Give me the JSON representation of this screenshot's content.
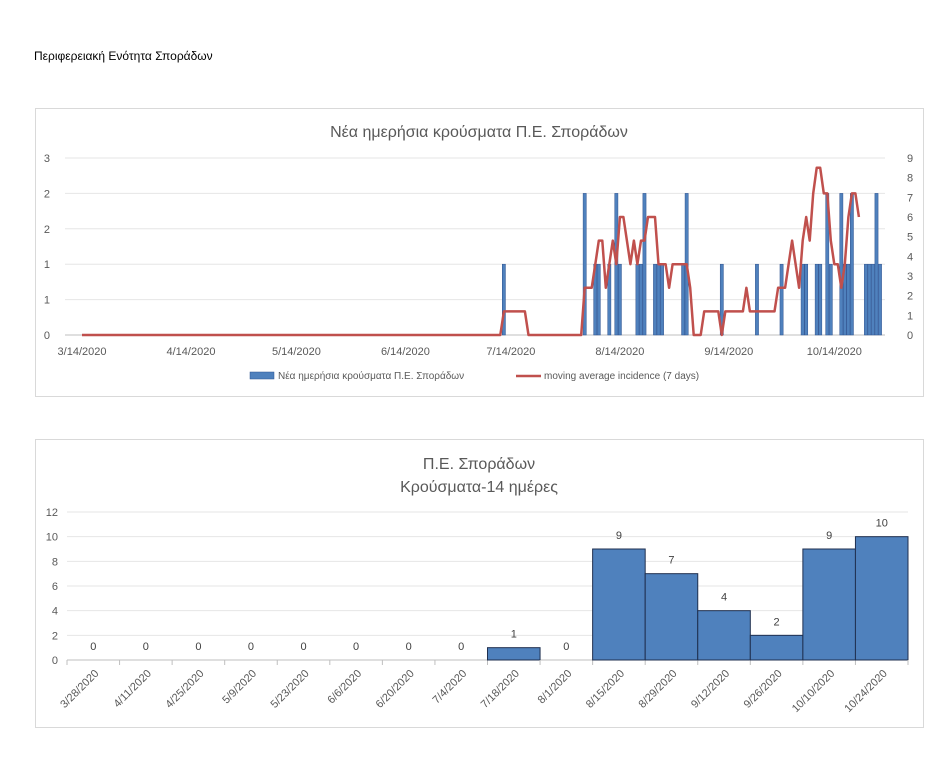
{
  "page": {
    "title": "Περιφερειακή Ενότητα Σποράδων"
  },
  "colors": {
    "bar": "#4f81bd",
    "bar_border": "#2f528f",
    "line": "#c0504d",
    "grid": "#e6e6e6",
    "text": "#595959"
  },
  "chart_data": [
    {
      "type": "bar+line",
      "title": "Νέα ημερήσια κρούσματα Π.Ε. Σποράδων",
      "x_start": "3/14/2020",
      "x_end": "10/27/2020",
      "x_ticks": [
        "3/14/2020",
        "4/14/2020",
        "5/14/2020",
        "6/14/2020",
        "7/14/2020",
        "8/14/2020",
        "9/14/2020",
        "10/14/2020"
      ],
      "y_left_ticks": [
        "0",
        "1",
        "1",
        "2",
        "2",
        "3"
      ],
      "y_left_range": [
        0,
        2.5
      ],
      "y_right_ticks": [
        "0",
        "1",
        "2",
        "3",
        "4",
        "5",
        "6",
        "7",
        "8",
        "9"
      ],
      "y_right_range": [
        0,
        9
      ],
      "legend": [
        "Νέα ημερήσια κρούσματα Π.Ε. Σποράδων",
        "moving average incidence (7 days)"
      ],
      "bars": {
        "name": "Νέα ημερήσια κρούσματα Π.Ε. Σποράδων",
        "axis": "left",
        "points": [
          [
            "7/12/2020",
            1
          ],
          [
            "8/4/2020",
            2
          ],
          [
            "8/7/2020",
            1
          ],
          [
            "8/8/2020",
            1
          ],
          [
            "8/11/2020",
            1
          ],
          [
            "8/13/2020",
            2
          ],
          [
            "8/14/2020",
            1
          ],
          [
            "8/19/2020",
            1
          ],
          [
            "8/20/2020",
            1
          ],
          [
            "8/21/2020",
            2
          ],
          [
            "8/24/2020",
            1
          ],
          [
            "8/25/2020",
            1
          ],
          [
            "8/26/2020",
            1
          ],
          [
            "9/1/2020",
            1
          ],
          [
            "9/2/2020",
            2
          ],
          [
            "9/12/2020",
            1
          ],
          [
            "9/22/2020",
            1
          ],
          [
            "9/29/2020",
            1
          ],
          [
            "10/5/2020",
            1
          ],
          [
            "10/6/2020",
            1
          ],
          [
            "10/9/2020",
            1
          ],
          [
            "10/10/2020",
            1
          ],
          [
            "10/12/2020",
            2
          ],
          [
            "10/13/2020",
            1
          ],
          [
            "10/16/2020",
            2
          ],
          [
            "10/17/2020",
            1
          ],
          [
            "10/18/2020",
            1
          ],
          [
            "10/19/2020",
            2
          ],
          [
            "10/23/2020",
            1
          ],
          [
            "10/24/2020",
            1
          ],
          [
            "10/25/2020",
            1
          ],
          [
            "10/26/2020",
            2
          ],
          [
            "10/27/2020",
            1
          ]
        ]
      },
      "line": {
        "name": "moving average incidence (7 days)",
        "axis": "right",
        "points": [
          [
            "3/14/2020",
            0
          ],
          [
            "7/11/2020",
            0
          ],
          [
            "7/12/2020",
            1.2
          ],
          [
            "7/18/2020",
            1.2
          ],
          [
            "7/19/2020",
            0
          ],
          [
            "8/3/2020",
            0
          ],
          [
            "8/4/2020",
            2.4
          ],
          [
            "8/6/2020",
            2.4
          ],
          [
            "8/7/2020",
            3.6
          ],
          [
            "8/8/2020",
            4.8
          ],
          [
            "8/9/2020",
            4.8
          ],
          [
            "8/10/2020",
            2.4
          ],
          [
            "8/11/2020",
            3.6
          ],
          [
            "8/12/2020",
            4.8
          ],
          [
            "8/13/2020",
            3.6
          ],
          [
            "8/14/2020",
            6.0
          ],
          [
            "8/15/2020",
            6.0
          ],
          [
            "8/16/2020",
            4.8
          ],
          [
            "8/17/2020",
            3.6
          ],
          [
            "8/18/2020",
            4.8
          ],
          [
            "8/19/2020",
            3.6
          ],
          [
            "8/20/2020",
            4.8
          ],
          [
            "8/21/2020",
            4.8
          ],
          [
            "8/22/2020",
            6.0
          ],
          [
            "8/23/2020",
            6.0
          ],
          [
            "8/24/2020",
            6.0
          ],
          [
            "8/25/2020",
            3.6
          ],
          [
            "8/26/2020",
            3.6
          ],
          [
            "8/27/2020",
            3.6
          ],
          [
            "8/28/2020",
            2.4
          ],
          [
            "8/29/2020",
            3.6
          ],
          [
            "8/30/2020",
            3.6
          ],
          [
            "9/2/2020",
            3.6
          ],
          [
            "9/3/2020",
            2.4
          ],
          [
            "9/4/2020",
            0
          ],
          [
            "9/6/2020",
            0
          ],
          [
            "9/7/2020",
            1.2
          ],
          [
            "9/11/2020",
            1.2
          ],
          [
            "9/12/2020",
            0
          ],
          [
            "9/13/2020",
            1.2
          ],
          [
            "9/18/2020",
            1.2
          ],
          [
            "9/19/2020",
            2.4
          ],
          [
            "9/20/2020",
            1.2
          ],
          [
            "9/27/2020",
            1.2
          ],
          [
            "9/28/2020",
            2.4
          ],
          [
            "9/30/2020",
            2.4
          ],
          [
            "10/1/2020",
            3.6
          ],
          [
            "10/2/2020",
            4.8
          ],
          [
            "10/3/2020",
            3.6
          ],
          [
            "10/4/2020",
            2.4
          ],
          [
            "10/5/2020",
            4.8
          ],
          [
            "10/6/2020",
            6.0
          ],
          [
            "10/7/2020",
            4.8
          ],
          [
            "10/8/2020",
            7.2
          ],
          [
            "10/9/2020",
            8.5
          ],
          [
            "10/10/2020",
            8.5
          ],
          [
            "10/11/2020",
            7.2
          ],
          [
            "10/12/2020",
            7.2
          ],
          [
            "10/13/2020",
            4.8
          ],
          [
            "10/14/2020",
            3.6
          ],
          [
            "10/15/2020",
            3.6
          ],
          [
            "10/16/2020",
            2.4
          ],
          [
            "10/17/2020",
            3.6
          ],
          [
            "10/18/2020",
            6.0
          ],
          [
            "10/19/2020",
            7.2
          ],
          [
            "10/20/2020",
            7.2
          ],
          [
            "10/21/2020",
            6.0
          ]
        ]
      }
    },
    {
      "type": "bar",
      "title": "Π.Ε. Σποράδων",
      "subtitle": "Κρούσματα-14 ημέρες",
      "categories": [
        "3/28/2020",
        "4/11/2020",
        "4/25/2020",
        "5/9/2020",
        "5/23/2020",
        "6/6/2020",
        "6/20/2020",
        "7/4/2020",
        "7/18/2020",
        "8/1/2020",
        "8/15/2020",
        "8/29/2020",
        "9/12/2020",
        "9/26/2020",
        "10/10/2020",
        "10/24/2020"
      ],
      "values": [
        0,
        0,
        0,
        0,
        0,
        0,
        0,
        0,
        1,
        0,
        9,
        7,
        4,
        2,
        9,
        10
      ],
      "y_ticks": [
        "0",
        "2",
        "4",
        "6",
        "8",
        "10",
        "12"
      ],
      "ylim": [
        0,
        12
      ],
      "data_labels": true
    }
  ]
}
